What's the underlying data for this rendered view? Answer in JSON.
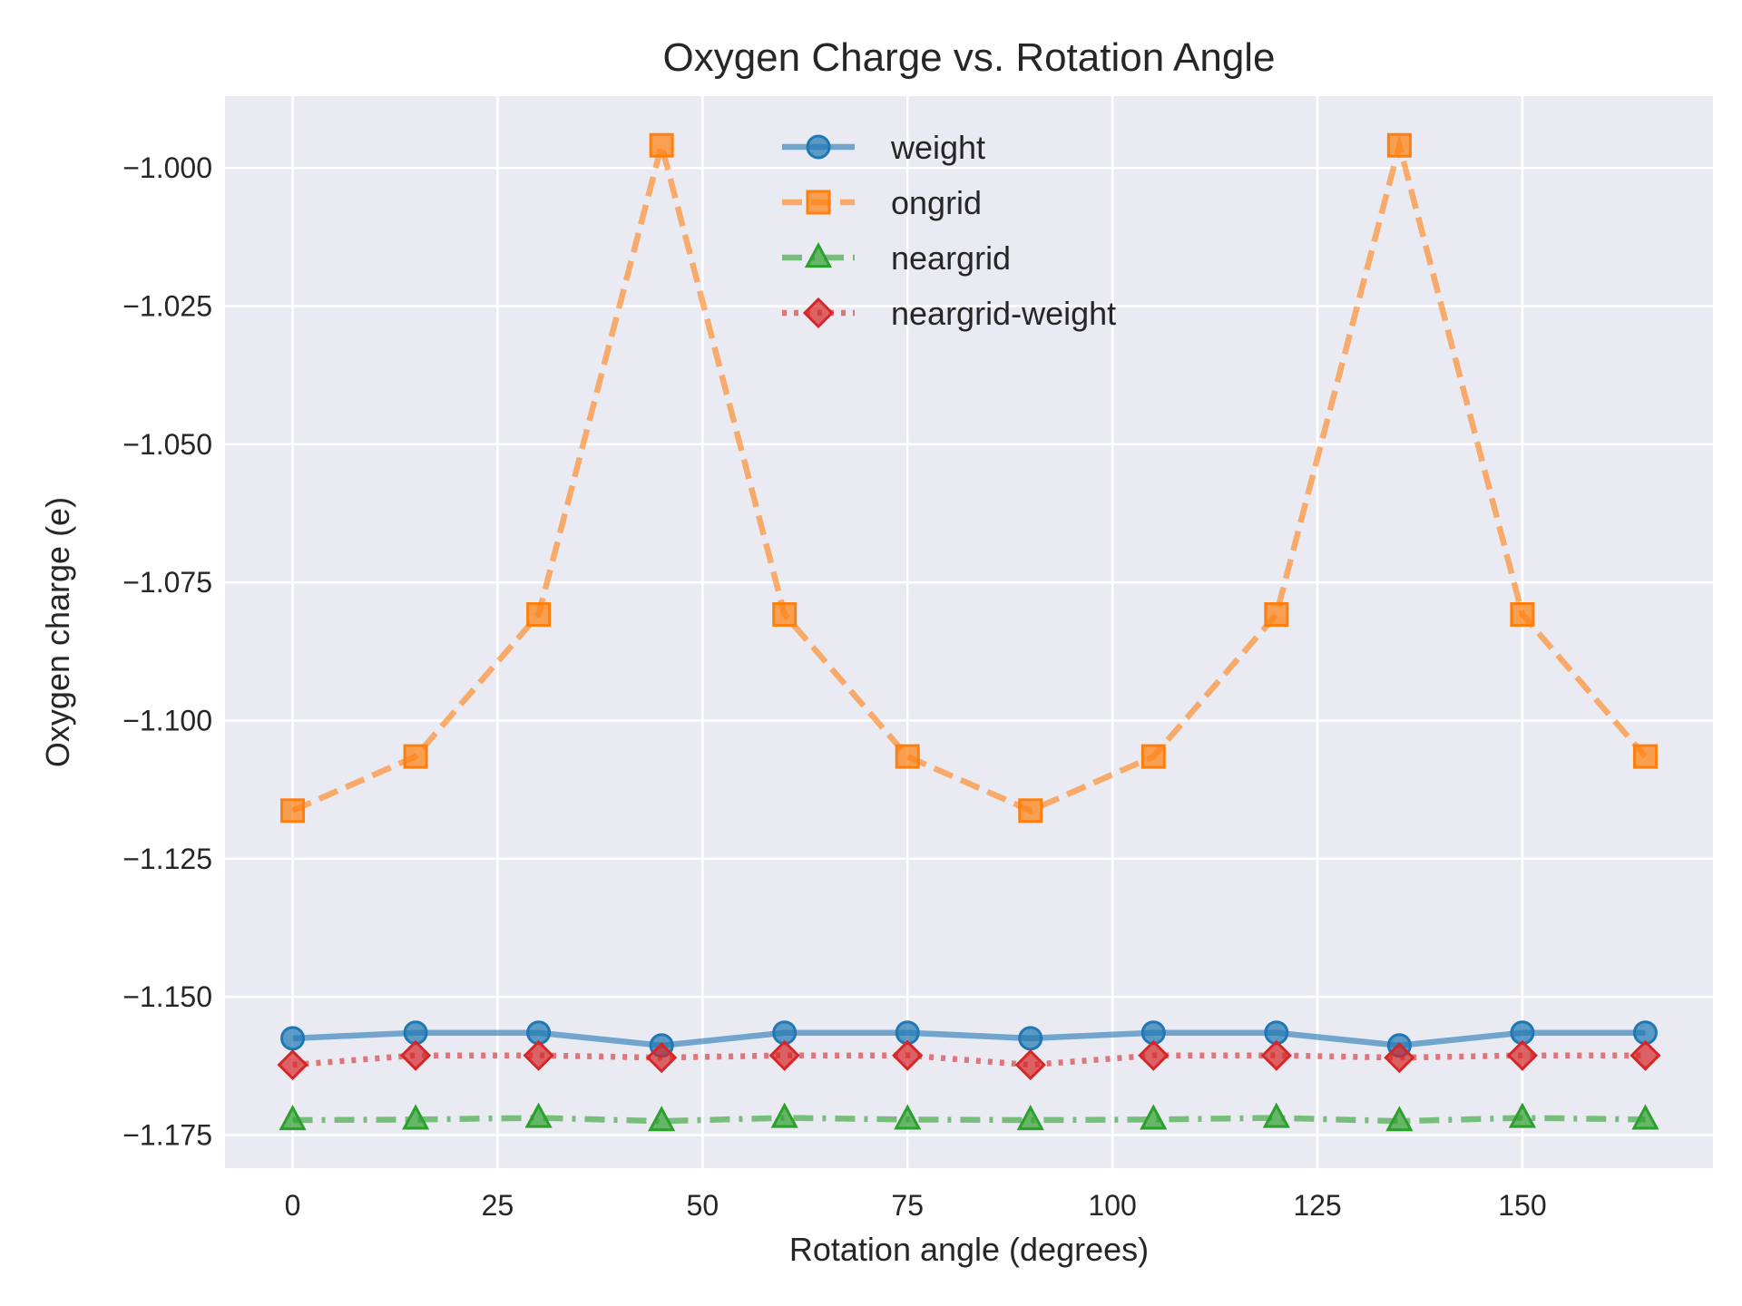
{
  "chart_data": {
    "type": "line",
    "title": "Oxygen Charge vs. Rotation Angle",
    "xlabel": "Rotation angle (degrees)",
    "ylabel": "Oxygen charge (e)",
    "xlim": [
      -8.25,
      173.25
    ],
    "ylim": [
      -1.181,
      -0.987
    ],
    "x_ticks": [
      0,
      25,
      50,
      75,
      100,
      125,
      150
    ],
    "y_ticks": [
      -1.0,
      -1.025,
      -1.05,
      -1.075,
      -1.1,
      -1.125,
      -1.15,
      -1.175
    ],
    "y_tick_labels": [
      "−1.000",
      "−1.025",
      "−1.050",
      "−1.075",
      "−1.100",
      "−1.125",
      "−1.150",
      "−1.175"
    ],
    "grid": true,
    "legend_position": "upper-center",
    "x": [
      0,
      15,
      30,
      45,
      60,
      75,
      90,
      105,
      120,
      135,
      150,
      165
    ],
    "series": [
      {
        "name": "weight",
        "color": "#1f77b4",
        "marker": "circle",
        "linestyle": "solid",
        "values": [
          -1.1575,
          -1.1565,
          -1.1565,
          -1.1588,
          -1.1565,
          -1.1565,
          -1.1575,
          -1.1565,
          -1.1565,
          -1.1588,
          -1.1565,
          -1.1565
        ]
      },
      {
        "name": "ongrid",
        "color": "#ff7f0e",
        "marker": "square",
        "linestyle": "dashed",
        "values": [
          -1.1163,
          -1.1065,
          -1.0808,
          -0.9959,
          -1.0808,
          -1.1065,
          -1.1163,
          -1.1065,
          -1.0808,
          -0.9959,
          -1.0808,
          -1.1065
        ]
      },
      {
        "name": "neargrid",
        "color": "#2ca02c",
        "marker": "triangle",
        "linestyle": "dashdot",
        "values": [
          -1.1723,
          -1.1722,
          -1.1719,
          -1.1725,
          -1.1719,
          -1.1722,
          -1.1723,
          -1.1722,
          -1.1719,
          -1.1725,
          -1.1719,
          -1.1722
        ]
      },
      {
        "name": "neargrid-weight",
        "color": "#d62728",
        "marker": "diamond",
        "linestyle": "dotted",
        "values": [
          -1.1623,
          -1.1606,
          -1.1606,
          -1.161,
          -1.1606,
          -1.1606,
          -1.1623,
          -1.1606,
          -1.1606,
          -1.161,
          -1.1606,
          -1.1606
        ]
      }
    ]
  }
}
